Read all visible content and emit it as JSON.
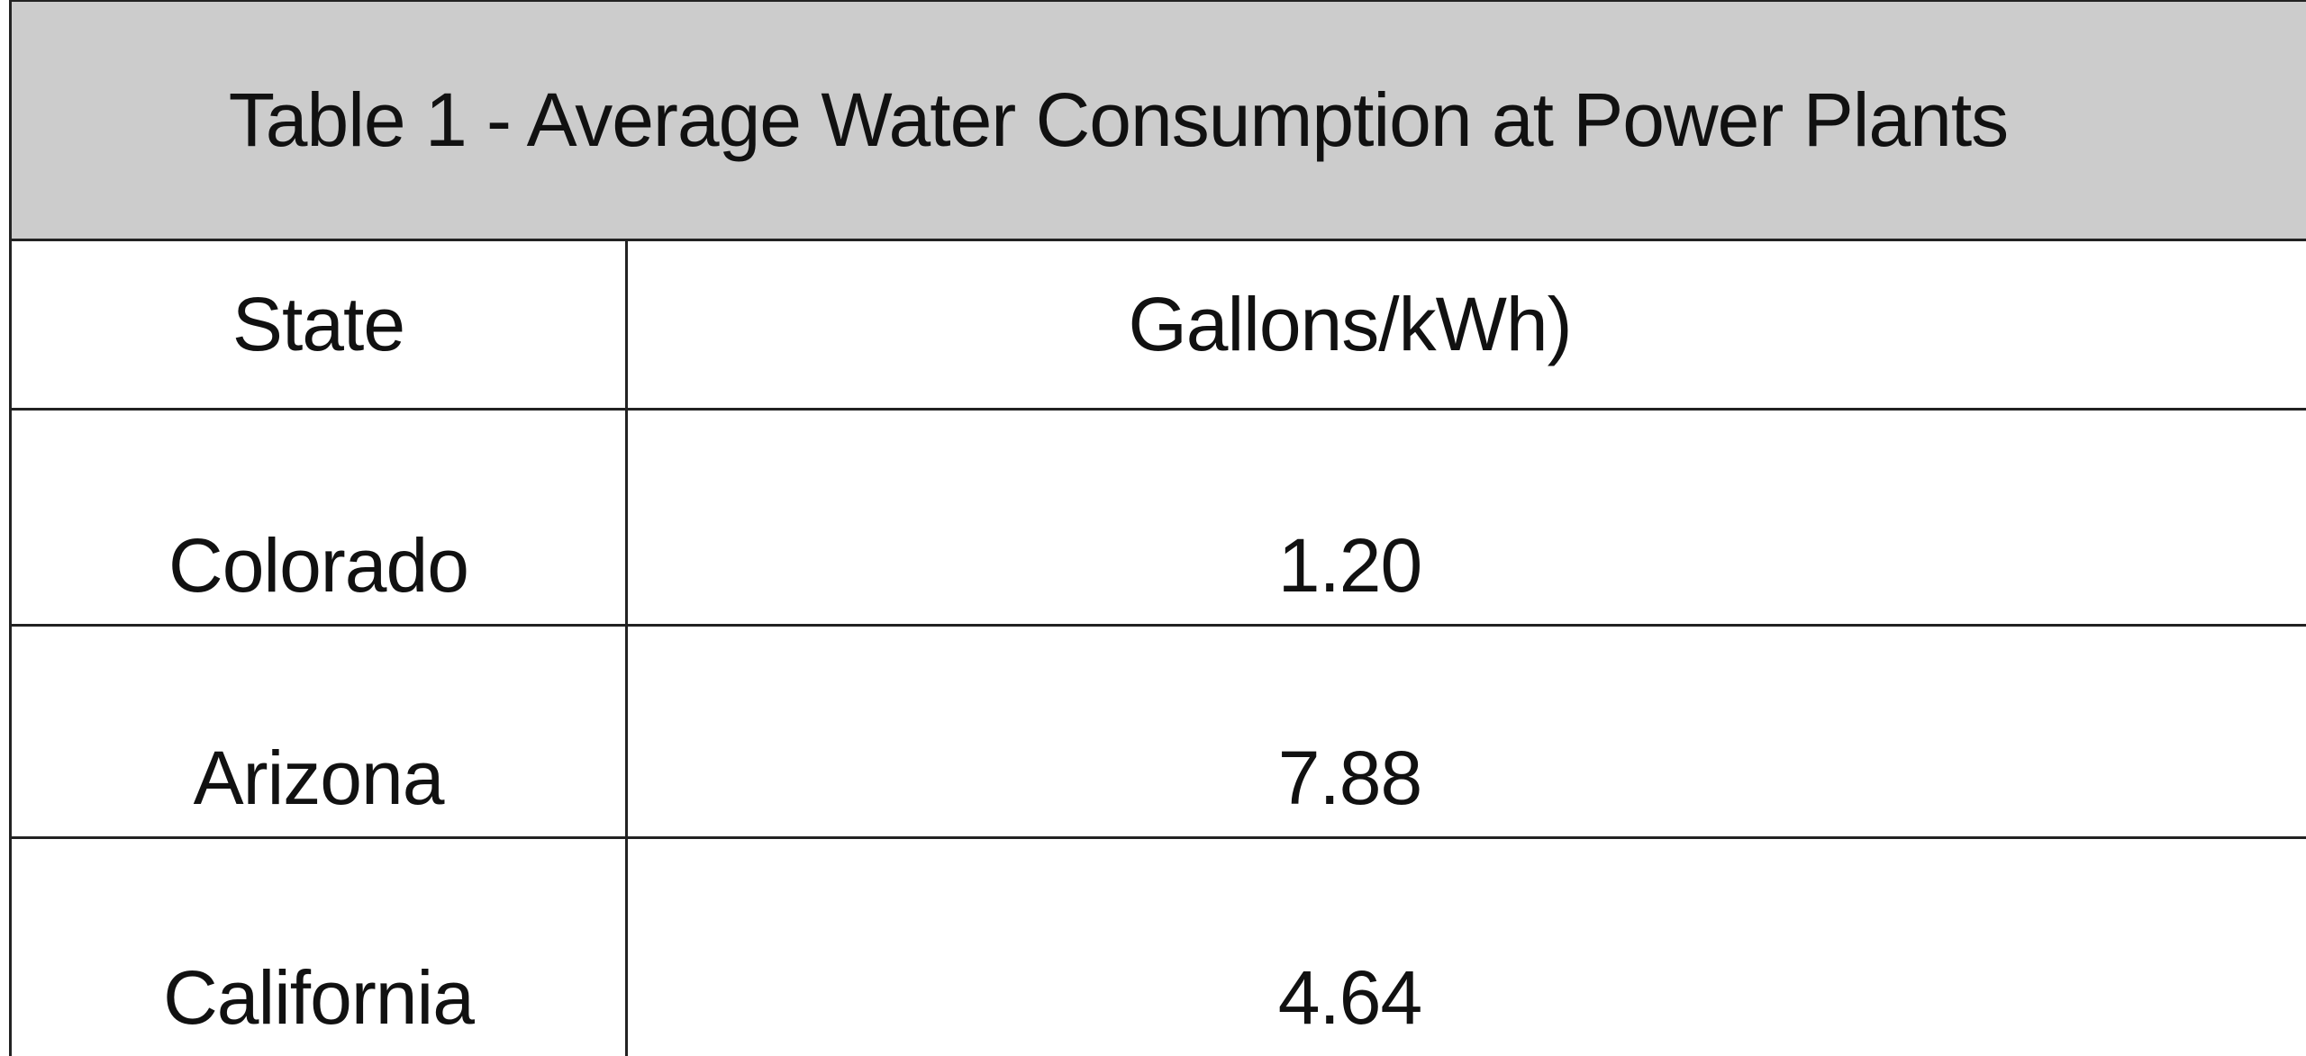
{
  "table": {
    "title": "Table 1 - Average Water Consumption at Power Plants",
    "columns": [
      "State",
      "Gallons/kWh)"
    ],
    "rows": [
      {
        "state": "Colorado",
        "value": "1.20"
      },
      {
        "state": "Arizona",
        "value": "7.88"
      },
      {
        "state": "California",
        "value": "4.64"
      }
    ]
  },
  "colors": {
    "title_background": "#cccccc",
    "border": "#222222",
    "text": "#111111"
  }
}
